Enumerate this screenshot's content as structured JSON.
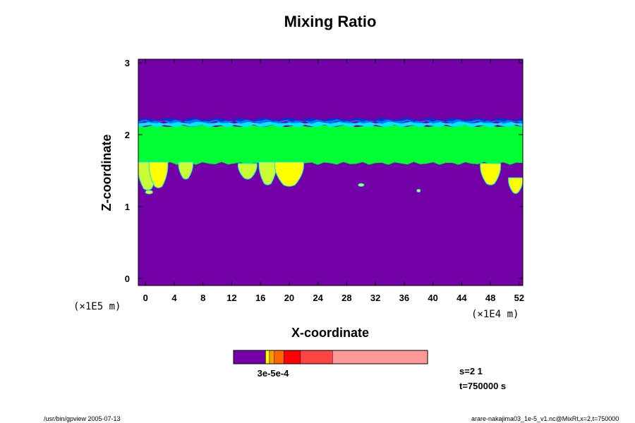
{
  "chart_data": {
    "type": "heatmap",
    "title": "Mixing Ratio",
    "xlabel": "X-coordinate",
    "ylabel": "Z-coordinate",
    "x_unit": "(×1E4 m)",
    "y_unit": "(×1E5 m)",
    "xlim": [
      -1,
      52.5
    ],
    "ylim": [
      -0.1,
      3.05
    ],
    "x_ticks": [
      0,
      4,
      8,
      12,
      16,
      20,
      24,
      28,
      32,
      36,
      40,
      44,
      48,
      52
    ],
    "y_ticks": [
      0,
      1,
      2,
      3
    ],
    "background_color": "#7300a6",
    "bands": [
      {
        "z_bottom": 1.6,
        "z_top": 2.12,
        "color": "#00ff33"
      },
      {
        "z_bottom": 2.12,
        "z_top": 2.17,
        "color": "#00e6ff"
      },
      {
        "z_bottom": 2.17,
        "z_top": 2.2,
        "color": "#0073ff"
      },
      {
        "z_bottom": 2.2,
        "z_top": 2.22,
        "color": "#0033cc"
      }
    ],
    "plumes": [
      {
        "x": 0.3,
        "z_top": 1.62,
        "z_bottom": 1.25,
        "halfwidth": 1.4,
        "color": "#ccff33"
      },
      {
        "x": 1.8,
        "z_top": 1.62,
        "z_bottom": 1.28,
        "halfwidth": 1.3,
        "color": "#ffff00"
      },
      {
        "x": 5.6,
        "z_top": 1.62,
        "z_bottom": 1.4,
        "halfwidth": 1.0,
        "color": "#ccff33"
      },
      {
        "x": 14.2,
        "z_top": 1.6,
        "z_bottom": 1.4,
        "halfwidth": 1.3,
        "color": "#ccff33"
      },
      {
        "x": 17.0,
        "z_top": 1.62,
        "z_bottom": 1.32,
        "halfwidth": 1.2,
        "color": "#ccff33"
      },
      {
        "x": 20.0,
        "z_top": 1.62,
        "z_bottom": 1.3,
        "halfwidth": 2.0,
        "color": "#ffff00"
      },
      {
        "x": 48.0,
        "z_top": 1.6,
        "z_bottom": 1.32,
        "halfwidth": 1.4,
        "color": "#ffff00"
      },
      {
        "x": 51.5,
        "z_top": 1.4,
        "z_bottom": 1.2,
        "halfwidth": 1.0,
        "color": "#ffff00"
      }
    ],
    "blobs": [
      {
        "x": 30.0,
        "z": 1.3,
        "r": 0.4,
        "color": "#ccff33"
      },
      {
        "x": 38.0,
        "z": 1.22,
        "r": 0.25,
        "color": "#ffff00"
      },
      {
        "x": 0.5,
        "z": 1.2,
        "r": 0.5,
        "color": "#ffff00"
      }
    ],
    "colorbar": {
      "colors": [
        "#7300a6",
        "#ffff00",
        "#ff9900",
        "#ff6600",
        "#ff0000",
        "#ff4444",
        "#ff9999"
      ],
      "fractions": [
        0.165,
        0.02,
        0.025,
        0.05,
        0.085,
        0.165,
        0.49
      ],
      "label": "3e-5e-4"
    }
  },
  "annotations": {
    "s": "s=2 1",
    "t": "t=750000 s",
    "footer_left": "/usr/bin/gpview 2005-07-13",
    "footer_right": "arare-nakajima03_1e-5_v1.nc@MixRt,x=2,t=750000"
  }
}
